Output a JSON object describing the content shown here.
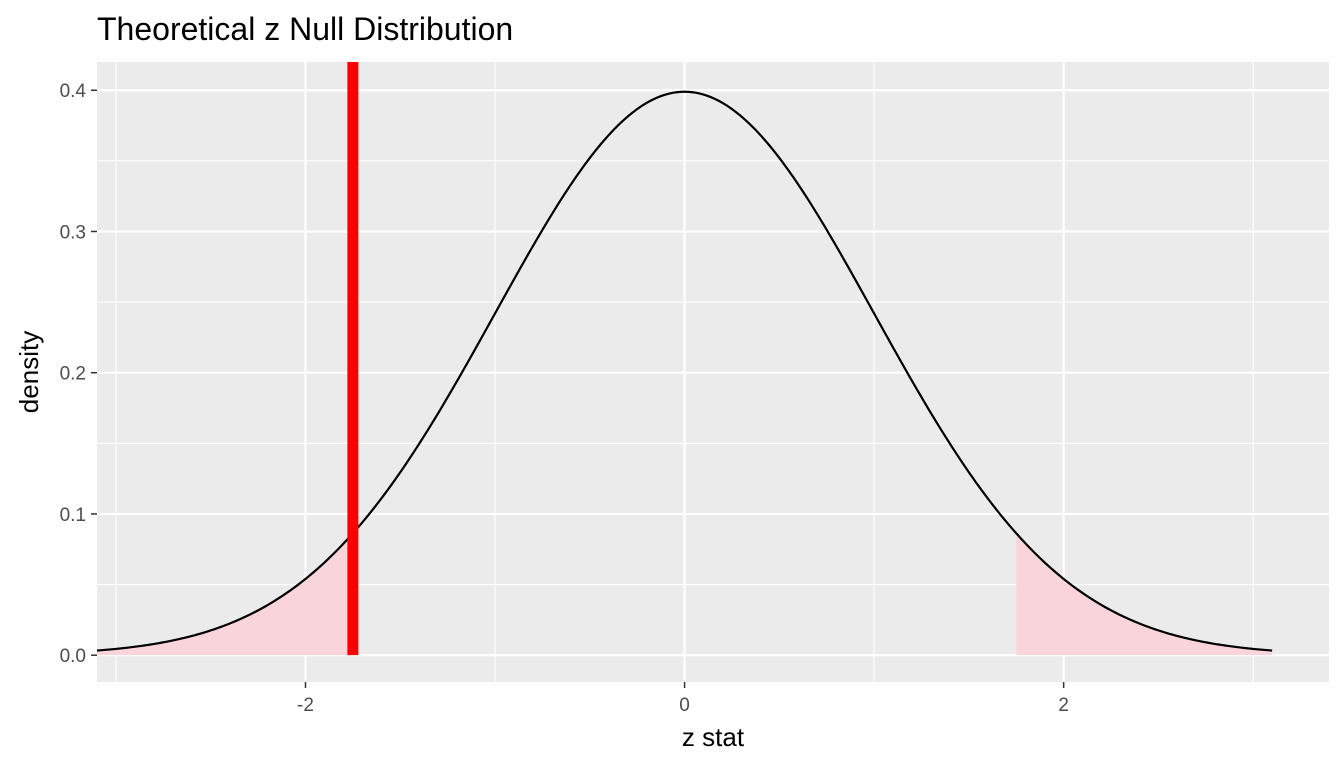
{
  "chart_data": {
    "type": "area",
    "title": "Theoretical z Null Distribution",
    "xlabel": "z stat",
    "ylabel": "density",
    "xlim": [
      -3.1,
      3.4
    ],
    "ylim": [
      -0.019,
      0.42
    ],
    "x_ticks": [
      -2,
      0,
      2
    ],
    "x_tick_labels": [
      "-2",
      "0",
      "2"
    ],
    "y_ticks": [
      0.0,
      0.1,
      0.2,
      0.3,
      0.4
    ],
    "y_tick_labels": [
      "0.0",
      "0.1",
      "0.2",
      "0.3",
      "0.4"
    ],
    "grid": true,
    "curve": {
      "distribution": "standard normal",
      "x_range": [
        -3.1,
        3.1
      ],
      "line_color": "#000000",
      "points": [
        {
          "x": -3.0,
          "y": 0.0044
        },
        {
          "x": -2.5,
          "y": 0.0175
        },
        {
          "x": -2.0,
          "y": 0.054
        },
        {
          "x": -1.5,
          "y": 0.1295
        },
        {
          "x": -1.0,
          "y": 0.242
        },
        {
          "x": -0.5,
          "y": 0.3521
        },
        {
          "x": 0.0,
          "y": 0.3989
        },
        {
          "x": 0.5,
          "y": 0.3521
        },
        {
          "x": 1.0,
          "y": 0.242
        },
        {
          "x": 1.5,
          "y": 0.1295
        },
        {
          "x": 2.0,
          "y": 0.054
        },
        {
          "x": 2.5,
          "y": 0.0175
        },
        {
          "x": 3.0,
          "y": 0.0044
        }
      ]
    },
    "shaded_regions": [
      {
        "x_from": -3.1,
        "x_to": -1.75,
        "color": "#f9d4da"
      },
      {
        "x_from": 1.75,
        "x_to": 3.1,
        "color": "#f9d4da"
      }
    ],
    "observed_statistic": {
      "x": -1.75,
      "color": "#ff0000"
    },
    "colors": {
      "panel": "#ebebeb",
      "grid": "#ffffff",
      "curve": "#000000",
      "shade": "#f9d4da",
      "obs_line": "#ff0000"
    }
  }
}
